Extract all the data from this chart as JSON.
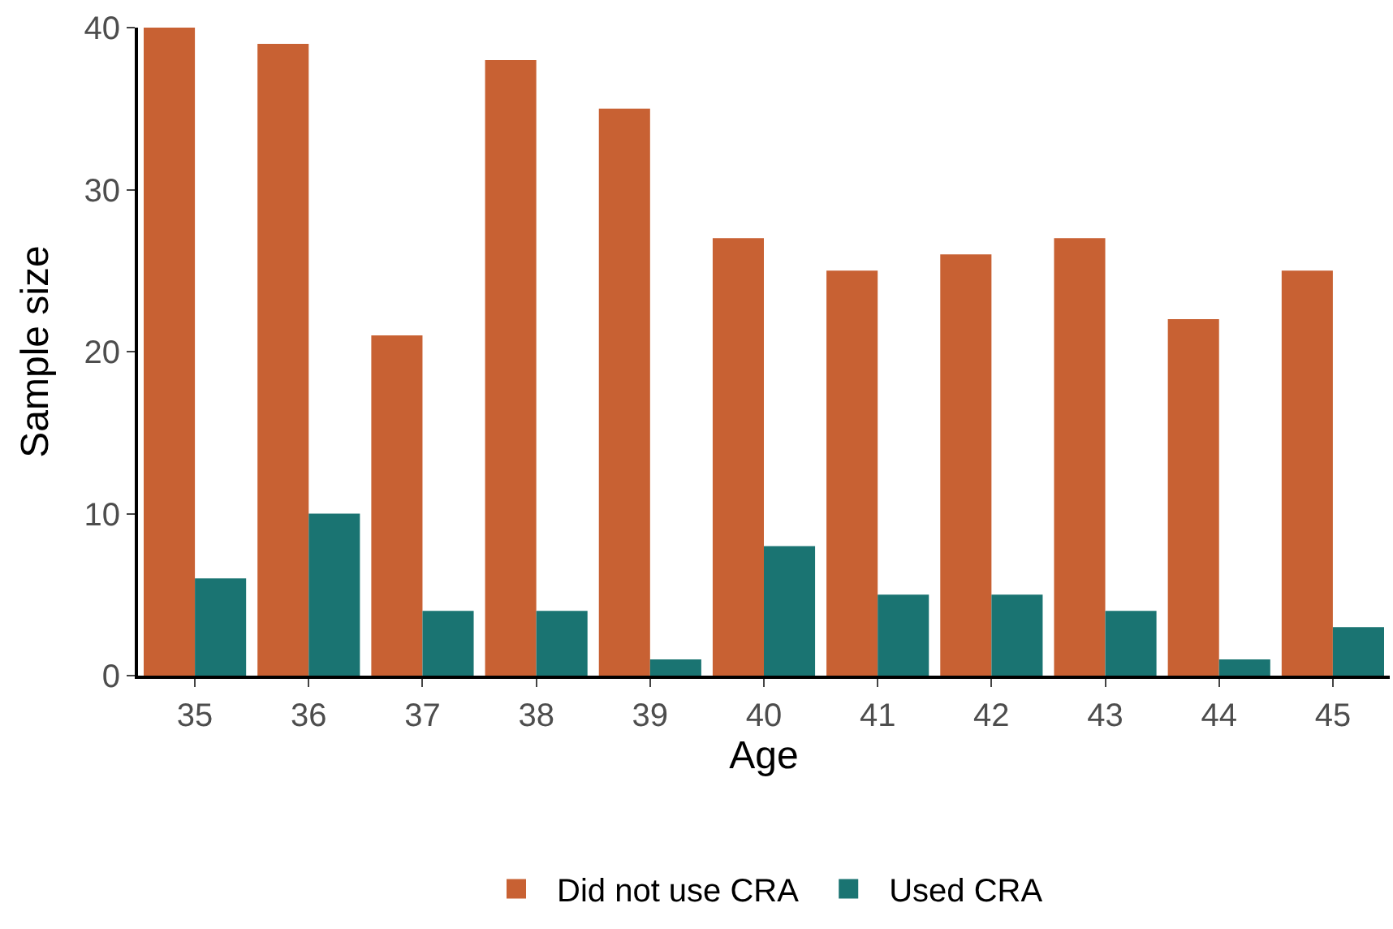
{
  "chart_data": {
    "type": "bar",
    "xlabel": "Age",
    "ylabel": "Sample size",
    "categories": [
      "35",
      "36",
      "37",
      "38",
      "39",
      "40",
      "41",
      "42",
      "43",
      "44",
      "45"
    ],
    "series": [
      {
        "name": "Did not use CRA",
        "color": "#c86133",
        "values": [
          40,
          39,
          21,
          38,
          35,
          27,
          25,
          26,
          27,
          22,
          25
        ]
      },
      {
        "name": "Used CRA",
        "color": "#1a7472",
        "values": [
          6,
          10,
          4,
          4,
          1,
          8,
          5,
          5,
          4,
          1,
          3
        ]
      }
    ],
    "ylim": [
      0,
      40
    ],
    "yticks": [
      0,
      10,
      20,
      30,
      40
    ],
    "legend": "bottom"
  }
}
